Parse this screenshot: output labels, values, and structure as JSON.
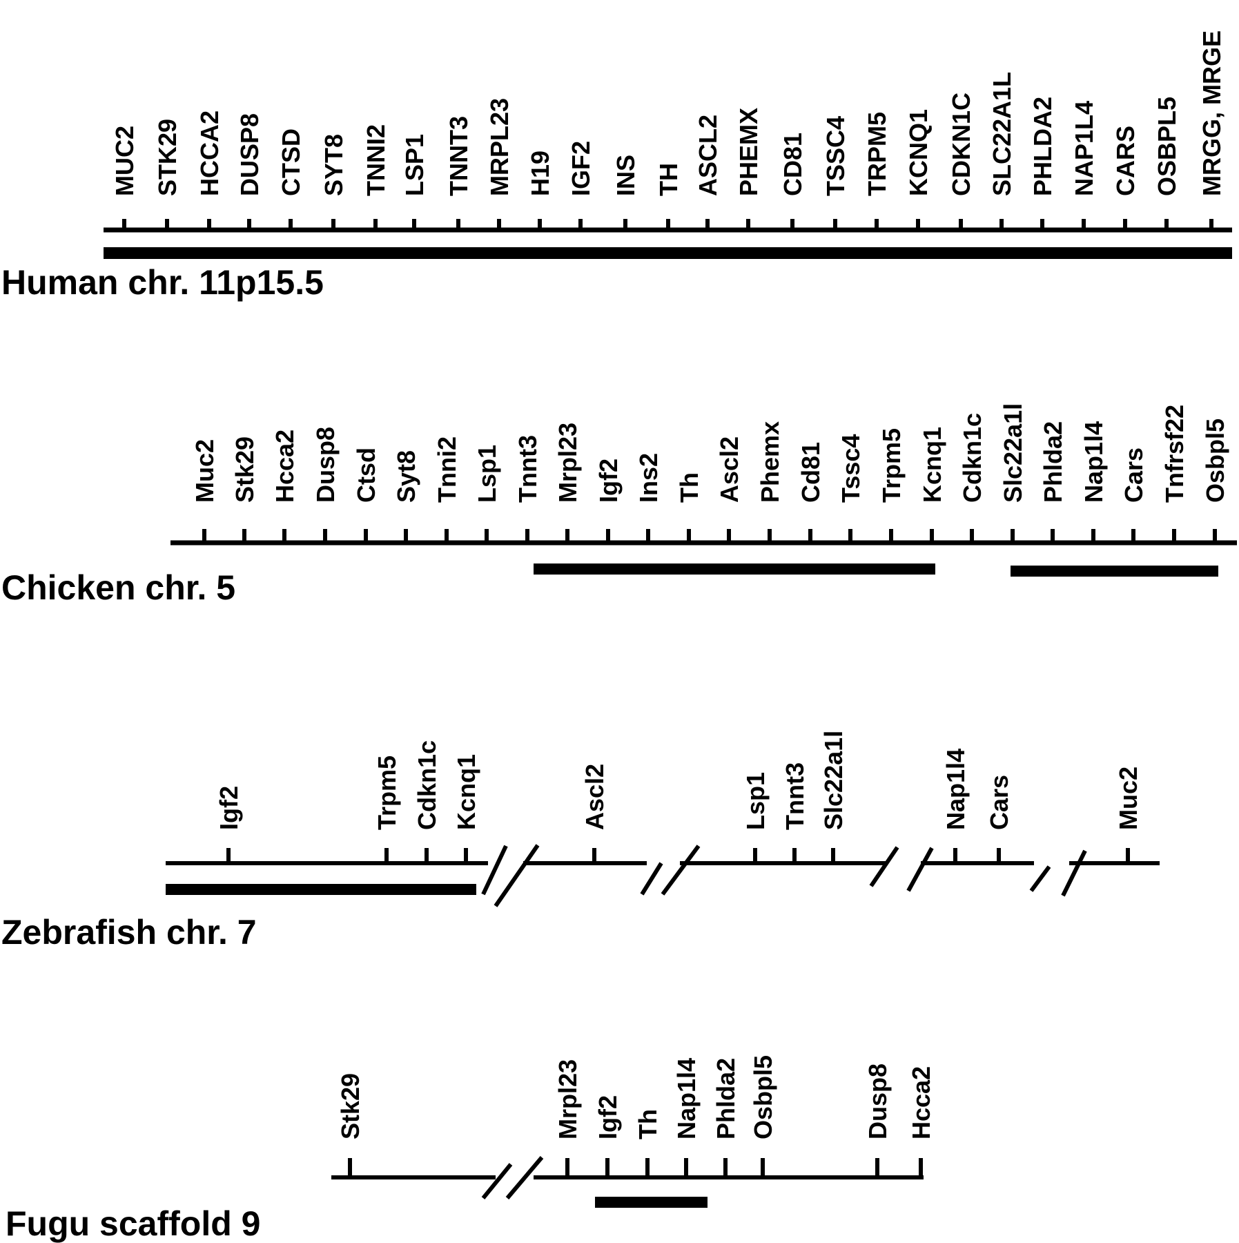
{
  "colors": {
    "ink": "#000000",
    "background": "#ffffff"
  },
  "tracks": [
    {
      "name": "Human chr. 11p15.5",
      "genes": [
        "MUC2",
        "STK29",
        "HCCA2",
        "DUSP8",
        "CTSD",
        "SYT8",
        "TNNI2",
        "LSP1",
        "TNNT3",
        "MRPL23",
        "H19",
        "IGF2",
        "INS",
        "TH",
        "ASCL2",
        "PHEMX",
        "CD81",
        "TSSC4",
        "TRPM5",
        "KCNQ1",
        "CDKN1C",
        "SLC22A1L",
        "PHLDA2",
        "NAP1L4",
        "CARS",
        "OSBPL5",
        "MRGG, MRGE"
      ]
    },
    {
      "name": "Chicken chr. 5",
      "genes": [
        "Muc2",
        "Stk29",
        "Hcca2",
        "Dusp8",
        "Ctsd",
        "Syt8",
        "Tnni2",
        "Lsp1",
        "Tnnt3",
        "Mrpl23",
        "Igf2",
        "Ins2",
        "Th",
        "Ascl2",
        "Phemx",
        "Cd81",
        "Tssc4",
        "Trpm5",
        "Kcnq1",
        "Cdkn1c",
        "Slc22a1l",
        "Phlda2",
        "Nap1l4",
        "Cars",
        "Tnfrsf22",
        "Osbpl5"
      ]
    },
    {
      "name": "Zebrafish chr. 7",
      "genes": [
        "Igf2",
        "Trpm5",
        "Cdkn1c",
        "Kcnq1",
        "Ascl2",
        "Lsp1",
        "Tnnt3",
        "Slc22a1l",
        "Nap1l4",
        "Cars",
        "Muc2"
      ]
    },
    {
      "name": "Fugu scaffold 9",
      "genes": [
        "Stk29",
        "Mrpl23",
        "Igf2",
        "Th",
        "Nap1l4",
        "Phlda2",
        "Osbpl5",
        "Dusp8",
        "Hcca2"
      ]
    }
  ]
}
